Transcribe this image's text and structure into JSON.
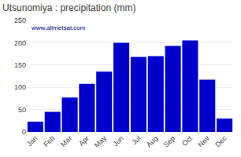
{
  "chart_data": {
    "type": "bar",
    "title": "Utsunomiya : precipitation (mm)",
    "categories": [
      "Jan",
      "Feb",
      "Mar",
      "Apr",
      "May",
      "Jun",
      "Jul",
      "Aug",
      "Sep",
      "Oct",
      "Nov",
      "Dec"
    ],
    "values": [
      23,
      45,
      77,
      108,
      135,
      200,
      168,
      170,
      193,
      205,
      117,
      30
    ],
    "color": "#0000cc",
    "ylim": [
      0,
      250
    ],
    "yticks": [
      0,
      50,
      100,
      150,
      200,
      250
    ],
    "grid": true,
    "annotations": [
      "www.allmetsat.com"
    ]
  }
}
